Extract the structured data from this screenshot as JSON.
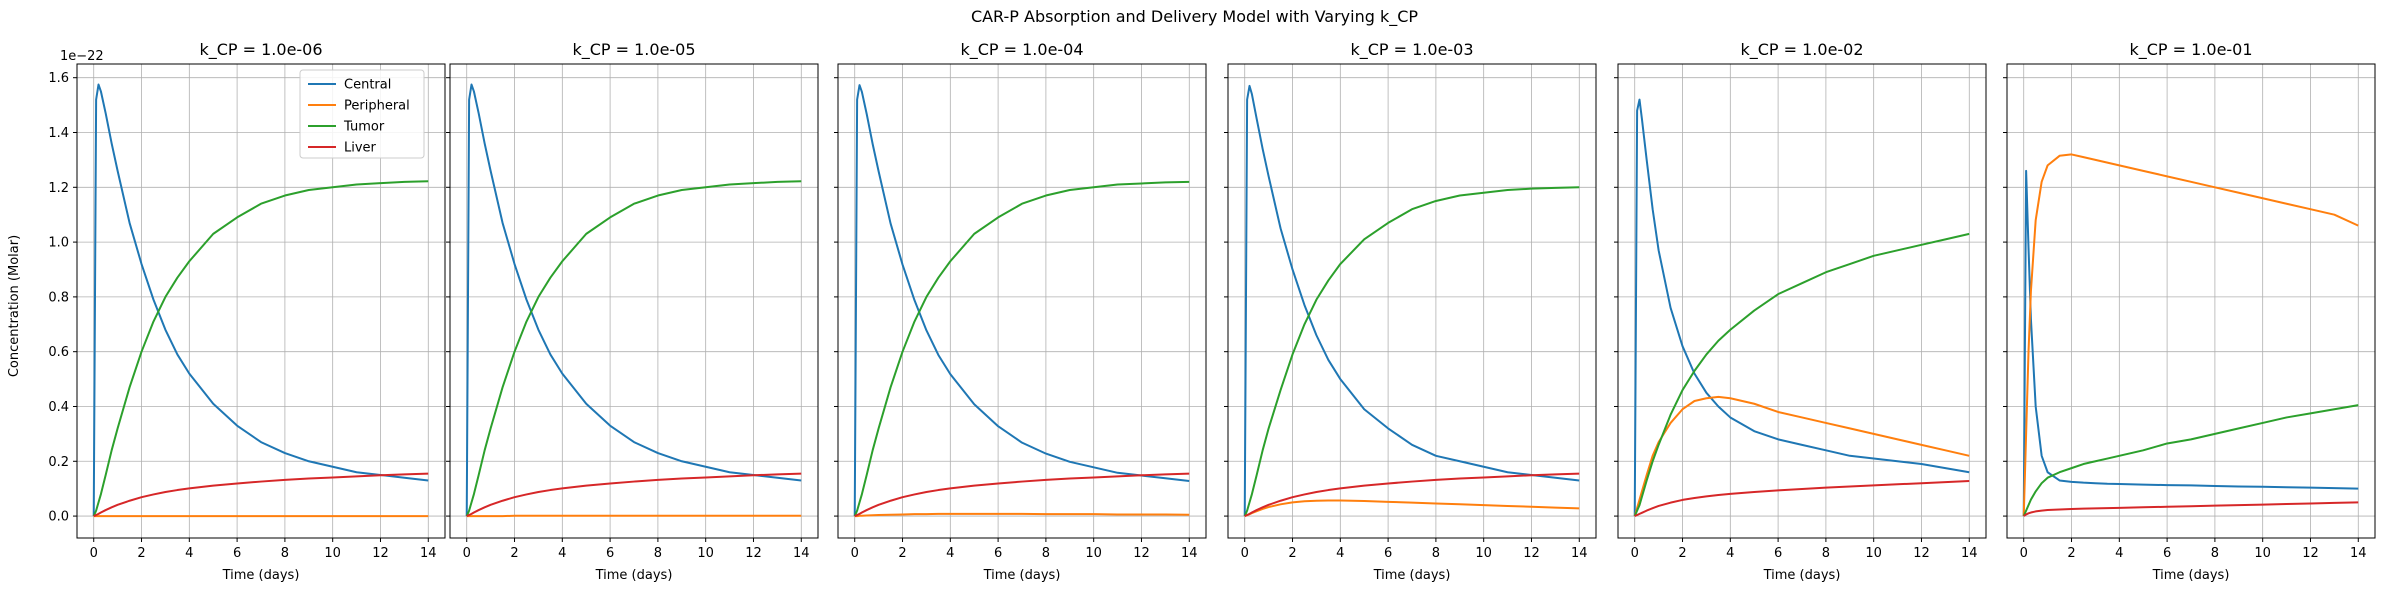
{
  "figure": {
    "suptitle": "CAR-P Absorption and Delivery Model with Varying k_CP",
    "ylabel": "Concentration (Molar)",
    "y_offset_label": "1e−22",
    "xlabel": "Time (days)"
  },
  "chart_data": {
    "type": "line",
    "xlim": [
      -0.7,
      14.7
    ],
    "ylim": [
      -0.08,
      1.65
    ],
    "y_scale_note": "values ×1e-22",
    "x_ticks": [
      "0",
      "2",
      "4",
      "6",
      "8",
      "10",
      "12",
      "14"
    ],
    "x_tick_values": [
      0,
      2,
      4,
      6,
      8,
      10,
      12,
      14
    ],
    "y_ticks": [
      "0.0",
      "0.2",
      "0.4",
      "0.6",
      "0.8",
      "1.0",
      "1.2",
      "1.4",
      "1.6"
    ],
    "y_tick_values": [
      0,
      0.2,
      0.4,
      0.6,
      0.8,
      1.0,
      1.2,
      1.4,
      1.6
    ],
    "grid": true,
    "legend_position": "upper-right (first panel only)",
    "x": [
      0,
      0.1,
      0.2,
      0.3,
      0.5,
      0.75,
      1,
      1.5,
      2,
      2.5,
      3,
      3.5,
      4,
      5,
      6,
      7,
      8,
      9,
      10,
      11,
      12,
      13,
      14
    ],
    "series_meta": [
      {
        "name": "Central",
        "color": "#1f77b4"
      },
      {
        "name": "Peripheral",
        "color": "#ff7f0e"
      },
      {
        "name": "Tumor",
        "color": "#2ca02c"
      },
      {
        "name": "Liver",
        "color": "#d62728"
      }
    ],
    "panels": [
      {
        "title": "k_CP = 1.0e-06",
        "series": [
          {
            "name": "Central",
            "values": [
              0,
              1.52,
              1.575,
              1.55,
              1.47,
              1.36,
              1.26,
              1.07,
              0.92,
              0.79,
              0.68,
              0.59,
              0.52,
              0.41,
              0.33,
              0.27,
              0.23,
              0.2,
              0.18,
              0.16,
              0.15,
              0.14,
              0.13
            ]
          },
          {
            "name": "Peripheral",
            "values": [
              0,
              0,
              0,
              0,
              0,
              0,
              0,
              0,
              0,
              0,
              0,
              0,
              0,
              0,
              0,
              0,
              0,
              0,
              0,
              0,
              0,
              0,
              0
            ]
          },
          {
            "name": "Tumor",
            "values": [
              0,
              0.02,
              0.05,
              0.08,
              0.15,
              0.24,
              0.32,
              0.47,
              0.6,
              0.71,
              0.8,
              0.87,
              0.93,
              1.03,
              1.09,
              1.14,
              1.17,
              1.19,
              1.2,
              1.21,
              1.215,
              1.22,
              1.222
            ]
          },
          {
            "name": "Liver",
            "values": [
              0,
              0.004,
              0.008,
              0.013,
              0.022,
              0.032,
              0.041,
              0.056,
              0.069,
              0.079,
              0.088,
              0.095,
              0.101,
              0.111,
              0.119,
              0.126,
              0.132,
              0.137,
              0.141,
              0.145,
              0.149,
              0.152,
              0.155
            ]
          }
        ]
      },
      {
        "title": "k_CP = 1.0e-05",
        "series": [
          {
            "name": "Central",
            "values": [
              0,
              1.52,
              1.575,
              1.55,
              1.47,
              1.36,
              1.26,
              1.07,
              0.92,
              0.79,
              0.68,
              0.59,
              0.52,
              0.41,
              0.33,
              0.27,
              0.23,
              0.2,
              0.18,
              0.16,
              0.15,
              0.14,
              0.13
            ]
          },
          {
            "name": "Peripheral",
            "values": [
              0,
              0,
              0,
              0,
              0,
              0,
              0,
              0,
              0.001,
              0.001,
              0.001,
              0.001,
              0.001,
              0.001,
              0.001,
              0.001,
              0.001,
              0.001,
              0.001,
              0.001,
              0.001,
              0.001,
              0.001
            ]
          },
          {
            "name": "Tumor",
            "values": [
              0,
              0.02,
              0.05,
              0.08,
              0.15,
              0.24,
              0.32,
              0.47,
              0.6,
              0.71,
              0.8,
              0.87,
              0.93,
              1.03,
              1.09,
              1.14,
              1.17,
              1.19,
              1.2,
              1.21,
              1.215,
              1.22,
              1.222
            ]
          },
          {
            "name": "Liver",
            "values": [
              0,
              0.004,
              0.008,
              0.013,
              0.022,
              0.032,
              0.041,
              0.056,
              0.069,
              0.079,
              0.088,
              0.095,
              0.101,
              0.111,
              0.119,
              0.126,
              0.132,
              0.137,
              0.141,
              0.145,
              0.149,
              0.152,
              0.155
            ]
          }
        ]
      },
      {
        "title": "k_CP = 1.0e-04",
        "series": [
          {
            "name": "Central",
            "values": [
              0,
              1.52,
              1.573,
              1.548,
              1.468,
              1.358,
              1.258,
              1.068,
              0.918,
              0.788,
              0.678,
              0.588,
              0.518,
              0.408,
              0.328,
              0.268,
              0.228,
              0.198,
              0.178,
              0.158,
              0.148,
              0.138,
              0.128
            ]
          },
          {
            "name": "Peripheral",
            "values": [
              0,
              0,
              0.001,
              0.001,
              0.002,
              0.003,
              0.004,
              0.005,
              0.006,
              0.007,
              0.007,
              0.008,
              0.008,
              0.008,
              0.008,
              0.008,
              0.007,
              0.007,
              0.007,
              0.006,
              0.006,
              0.006,
              0.005
            ]
          },
          {
            "name": "Tumor",
            "values": [
              0,
              0.02,
              0.05,
              0.08,
              0.15,
              0.24,
              0.32,
              0.47,
              0.6,
              0.71,
              0.8,
              0.87,
              0.93,
              1.03,
              1.09,
              1.14,
              1.17,
              1.19,
              1.2,
              1.21,
              1.214,
              1.218,
              1.22
            ]
          },
          {
            "name": "Liver",
            "values": [
              0,
              0.004,
              0.008,
              0.013,
              0.022,
              0.032,
              0.041,
              0.056,
              0.069,
              0.079,
              0.088,
              0.095,
              0.101,
              0.111,
              0.119,
              0.126,
              0.132,
              0.137,
              0.141,
              0.145,
              0.149,
              0.152,
              0.155
            ]
          }
        ]
      },
      {
        "title": "k_CP = 1.0e-03",
        "series": [
          {
            "name": "Central",
            "values": [
              0,
              1.52,
              1.57,
              1.54,
              1.45,
              1.34,
              1.24,
              1.05,
              0.9,
              0.77,
              0.66,
              0.57,
              0.5,
              0.39,
              0.32,
              0.26,
              0.22,
              0.2,
              0.18,
              0.16,
              0.15,
              0.14,
              0.13
            ]
          },
          {
            "name": "Peripheral",
            "values": [
              0,
              0.003,
              0.007,
              0.011,
              0.018,
              0.026,
              0.033,
              0.043,
              0.05,
              0.054,
              0.056,
              0.057,
              0.057,
              0.055,
              0.052,
              0.049,
              0.046,
              0.043,
              0.04,
              0.037,
              0.034,
              0.031,
              0.028
            ]
          },
          {
            "name": "Tumor",
            "values": [
              0,
              0.02,
              0.05,
              0.08,
              0.15,
              0.24,
              0.32,
              0.46,
              0.59,
              0.7,
              0.79,
              0.86,
              0.92,
              1.01,
              1.07,
              1.12,
              1.15,
              1.17,
              1.18,
              1.19,
              1.195,
              1.198,
              1.2
            ]
          },
          {
            "name": "Liver",
            "values": [
              0,
              0.004,
              0.008,
              0.013,
              0.022,
              0.032,
              0.041,
              0.056,
              0.069,
              0.079,
              0.088,
              0.095,
              0.101,
              0.111,
              0.119,
              0.126,
              0.132,
              0.137,
              0.141,
              0.145,
              0.149,
              0.152,
              0.155
            ]
          }
        ]
      },
      {
        "title": "k_CP = 1.0e-02",
        "series": [
          {
            "name": "Central",
            "values": [
              0,
              1.48,
              1.52,
              1.45,
              1.3,
              1.12,
              0.97,
              0.76,
              0.62,
              0.52,
              0.45,
              0.4,
              0.36,
              0.31,
              0.28,
              0.26,
              0.24,
              0.22,
              0.21,
              0.2,
              0.19,
              0.175,
              0.16
            ]
          },
          {
            "name": "Peripheral",
            "values": [
              0,
              0.03,
              0.06,
              0.09,
              0.15,
              0.22,
              0.27,
              0.34,
              0.39,
              0.42,
              0.43,
              0.435,
              0.43,
              0.41,
              0.38,
              0.36,
              0.34,
              0.32,
              0.3,
              0.28,
              0.26,
              0.24,
              0.22
            ]
          },
          {
            "name": "Tumor",
            "values": [
              0,
              0.02,
              0.04,
              0.07,
              0.13,
              0.2,
              0.26,
              0.37,
              0.46,
              0.53,
              0.59,
              0.64,
              0.68,
              0.75,
              0.81,
              0.85,
              0.89,
              0.92,
              0.95,
              0.97,
              0.99,
              1.01,
              1.03
            ]
          },
          {
            "name": "Liver",
            "values": [
              0,
              0.004,
              0.008,
              0.012,
              0.02,
              0.029,
              0.037,
              0.049,
              0.059,
              0.066,
              0.072,
              0.077,
              0.081,
              0.088,
              0.094,
              0.099,
              0.104,
              0.108,
              0.112,
              0.116,
              0.12,
              0.124,
              0.128
            ]
          }
        ]
      },
      {
        "title": "k_CP = 1.0e-01",
        "series": [
          {
            "name": "Central",
            "values": [
              0,
              1.26,
              0.98,
              0.72,
              0.4,
              0.22,
              0.16,
              0.13,
              0.125,
              0.122,
              0.12,
              0.118,
              0.117,
              0.115,
              0.113,
              0.112,
              0.11,
              0.108,
              0.107,
              0.105,
              0.104,
              0.102,
              0.1
            ]
          },
          {
            "name": "Peripheral",
            "values": [
              0,
              0.3,
              0.6,
              0.82,
              1.08,
              1.22,
              1.28,
              1.315,
              1.32,
              1.31,
              1.3,
              1.29,
              1.28,
              1.26,
              1.24,
              1.22,
              1.2,
              1.18,
              1.16,
              1.14,
              1.12,
              1.1,
              1.06
            ]
          },
          {
            "name": "Tumor",
            "values": [
              0,
              0.02,
              0.04,
              0.06,
              0.09,
              0.12,
              0.14,
              0.16,
              0.175,
              0.19,
              0.2,
              0.21,
              0.22,
              0.24,
              0.265,
              0.28,
              0.3,
              0.32,
              0.34,
              0.36,
              0.375,
              0.39,
              0.405
            ]
          },
          {
            "name": "Liver",
            "values": [
              0,
              0.006,
              0.01,
              0.013,
              0.017,
              0.02,
              0.022,
              0.024,
              0.026,
              0.027,
              0.028,
              0.029,
              0.03,
              0.032,
              0.034,
              0.036,
              0.038,
              0.04,
              0.042,
              0.044,
              0.046,
              0.048,
              0.05
            ]
          }
        ]
      }
    ]
  }
}
